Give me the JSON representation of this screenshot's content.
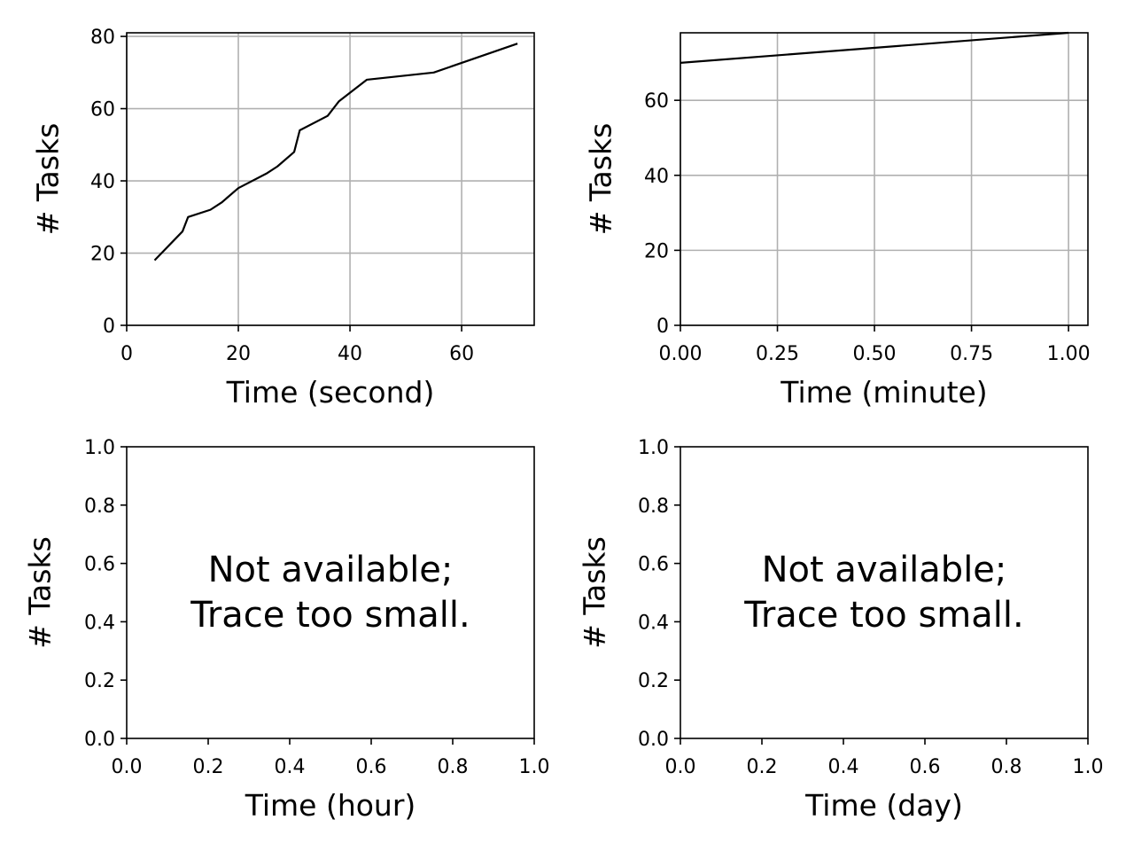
{
  "chart_data": [
    {
      "type": "line",
      "xlabel": "Time (second)",
      "ylabel": "# Tasks",
      "xlim": [
        0,
        73
      ],
      "ylim": [
        0,
        81
      ],
      "xticks": [
        0,
        20,
        40,
        60
      ],
      "yticks": [
        0,
        20,
        40,
        60,
        80
      ],
      "xtick_labels": [
        "0",
        "20",
        "40",
        "60"
      ],
      "ytick_labels": [
        "0",
        "20",
        "40",
        "60",
        "80"
      ],
      "grid": true,
      "line_color": "#000000",
      "note": "",
      "series": [
        {
          "x": [
            5,
            10,
            11,
            15,
            17,
            20,
            25,
            27,
            30,
            31,
            36,
            38,
            43,
            55,
            70
          ],
          "y": [
            18,
            26,
            30,
            32,
            34,
            38,
            42,
            44,
            48,
            54,
            58,
            62,
            68,
            70,
            78
          ]
        }
      ]
    },
    {
      "type": "line",
      "xlabel": "Time (minute)",
      "ylabel": "# Tasks",
      "xlim": [
        0,
        1.05
      ],
      "ylim": [
        0,
        78
      ],
      "xticks": [
        0,
        0.25,
        0.5,
        0.75,
        1.0
      ],
      "yticks": [
        0,
        20,
        40,
        60
      ],
      "xtick_labels": [
        "0.00",
        "0.25",
        "0.50",
        "0.75",
        "1.00"
      ],
      "ytick_labels": [
        "0",
        "20",
        "40",
        "60"
      ],
      "grid": true,
      "line_color": "#000000",
      "note": "",
      "series": [
        {
          "x": [
            0,
            1.0
          ],
          "y": [
            70,
            78
          ]
        }
      ]
    },
    {
      "type": "line",
      "xlabel": "Time (hour)",
      "ylabel": "# Tasks",
      "xlim": [
        0,
        1
      ],
      "ylim": [
        0,
        1
      ],
      "xticks": [
        0,
        0.2,
        0.4,
        0.6,
        0.8,
        1.0
      ],
      "yticks": [
        0,
        0.2,
        0.4,
        0.6,
        0.8,
        1.0
      ],
      "xtick_labels": [
        "0.0",
        "0.2",
        "0.4",
        "0.6",
        "0.8",
        "1.0"
      ],
      "ytick_labels": [
        "0.0",
        "0.2",
        "0.4",
        "0.6",
        "0.8",
        "1.0"
      ],
      "grid": false,
      "line_color": "#000000",
      "note": "Not available;\nTrace too small.",
      "series": []
    },
    {
      "type": "line",
      "xlabel": "Time (day)",
      "ylabel": "# Tasks",
      "xlim": [
        0,
        1
      ],
      "ylim": [
        0,
        1
      ],
      "xticks": [
        0,
        0.2,
        0.4,
        0.6,
        0.8,
        1.0
      ],
      "yticks": [
        0,
        0.2,
        0.4,
        0.6,
        0.8,
        1.0
      ],
      "xtick_labels": [
        "0.0",
        "0.2",
        "0.4",
        "0.6",
        "0.8",
        "1.0"
      ],
      "ytick_labels": [
        "0.0",
        "0.2",
        "0.4",
        "0.6",
        "0.8",
        "1.0"
      ],
      "grid": false,
      "line_color": "#000000",
      "note": "Not available;\nTrace too small.",
      "series": []
    }
  ]
}
